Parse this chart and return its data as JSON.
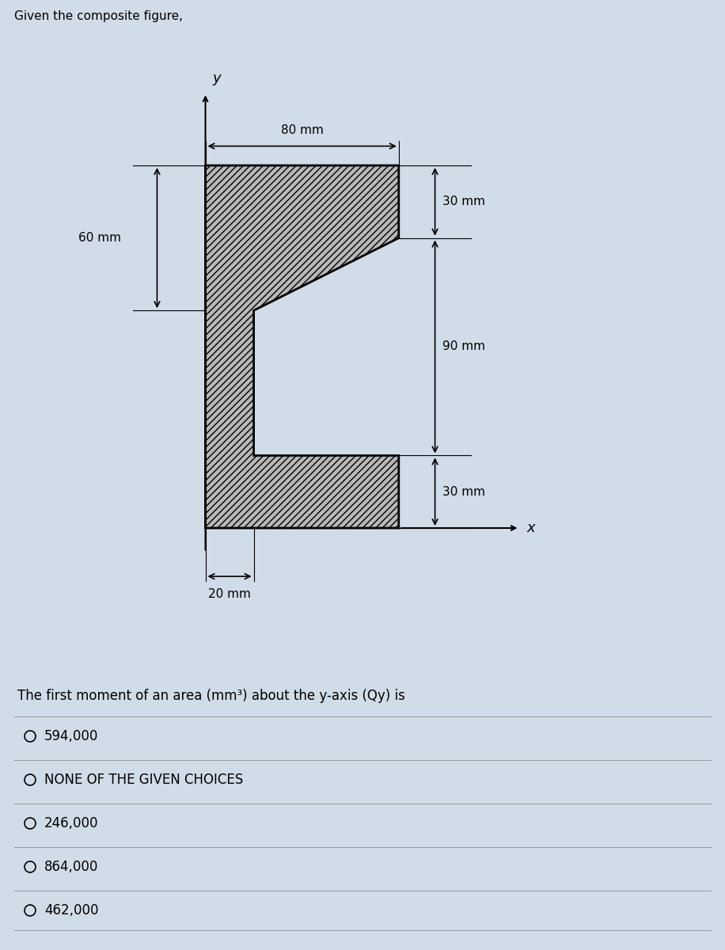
{
  "title": "Given the composite figure,",
  "question": "The first moment of an area (mm³) about the y-axis (Qy) is",
  "choices": [
    "594,000",
    "NONE OF THE GIVEN CHOICES",
    "246,000",
    "864,000",
    "462,000"
  ],
  "bg_color": "#d0dce8",
  "shape_fill": "#b8b8b8",
  "shape_hatch": "////",
  "shape_edge": "#000000",
  "dim_80mm": "80 mm",
  "dim_60mm": "60 mm",
  "dim_30mm_top": "30 mm",
  "dim_90mm": "90 mm",
  "dim_30mm_bot": "30 mm",
  "dim_20mm": "20 mm",
  "axis_color": "#000000",
  "text_color": "#000000",
  "fig_width": 9.16,
  "fig_height": 12.0,
  "dpi": 100,
  "shape_verts_x": [
    0,
    80,
    80,
    20,
    20,
    80,
    80,
    0
  ],
  "shape_verts_y": [
    0,
    0,
    30,
    30,
    90,
    120,
    150,
    150
  ]
}
